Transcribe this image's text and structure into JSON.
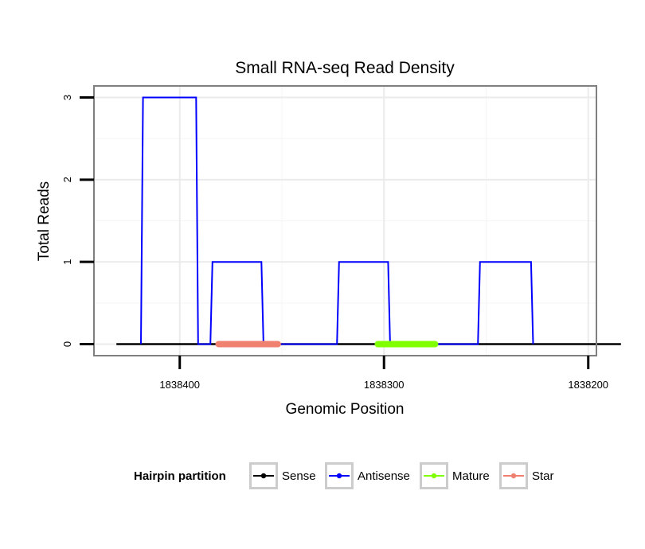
{
  "chart_data": {
    "type": "line",
    "title": "Small RNA-seq Read Density",
    "xlabel": "Genomic Position",
    "ylabel": "Total Reads",
    "xlim": [
      1838442,
      1838196
    ],
    "ylim": [
      -0.14,
      3.14
    ],
    "x_reversed": true,
    "x_ticks": [
      {
        "value": 1838400,
        "label": "1838400"
      },
      {
        "value": 1838300,
        "label": "1838300"
      },
      {
        "value": 1838200,
        "label": "1838200"
      }
    ],
    "y_ticks": [
      {
        "value": 0,
        "label": "0"
      },
      {
        "value": 1,
        "label": "1"
      },
      {
        "value": 2,
        "label": "2"
      },
      {
        "value": 3,
        "label": "3"
      }
    ],
    "grid": true,
    "legend": {
      "title": "Hairpin partition",
      "position": "bottom"
    },
    "series": [
      {
        "name": "Sense",
        "color": "#000000",
        "width": 2.5,
        "points": [
          [
            1838431,
            0
          ],
          [
            1838184,
            0
          ]
        ]
      },
      {
        "name": "Antisense",
        "color": "#0000ff",
        "width": 2,
        "points": [
          [
            1838419,
            0
          ],
          [
            1838418,
            3
          ],
          [
            1838392,
            3
          ],
          [
            1838391,
            0
          ],
          [
            1838385,
            0
          ],
          [
            1838384,
            1
          ],
          [
            1838360,
            1
          ],
          [
            1838359,
            0
          ],
          [
            1838323,
            0
          ],
          [
            1838322,
            1
          ],
          [
            1838298,
            1
          ],
          [
            1838297,
            0
          ],
          [
            1838254,
            0
          ],
          [
            1838253,
            1
          ],
          [
            1838228,
            1
          ],
          [
            1838227,
            0
          ]
        ]
      },
      {
        "name": "Mature",
        "color": "#7fff00",
        "width": 8,
        "points": [
          [
            1838303,
            0
          ],
          [
            1838275,
            0
          ]
        ]
      },
      {
        "name": "Star",
        "color": "#f08070",
        "width": 8,
        "points": [
          [
            1838381,
            0
          ],
          [
            1838352,
            0
          ]
        ]
      }
    ]
  }
}
